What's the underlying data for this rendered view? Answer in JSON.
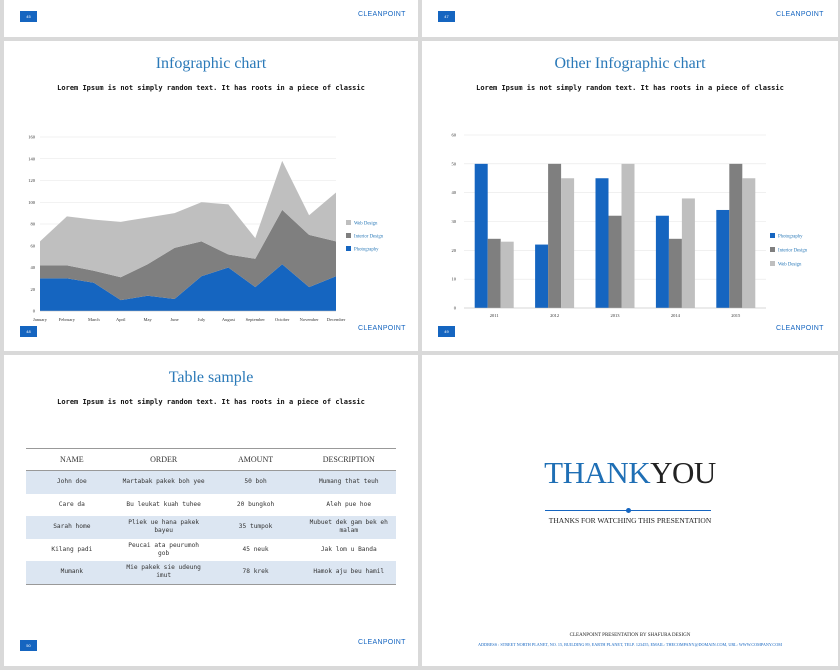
{
  "brand": "CLEANPOINT",
  "top_slides": {
    "left_page": "45",
    "right_page": "47"
  },
  "slide1": {
    "title": "Infographic chart",
    "subtitle": "Lorem Ipsum is not simply random text. It has roots in a piece of classic",
    "page": "48"
  },
  "slide2": {
    "title": "Other Infographic chart",
    "subtitle": "Lorem Ipsum is not simply random text. It has roots in a piece of classic",
    "page": "49"
  },
  "slide3": {
    "title": "Table sample",
    "subtitle": "Lorem Ipsum is not simply random text. It has roots in a piece of classic",
    "page": "50",
    "headers": [
      "NAME",
      "ORDER",
      "AMOUNT",
      "DESCRIPTION"
    ],
    "rows": [
      [
        "John doe",
        "Martabak pakek boh yee",
        "50 boh",
        "Mumang that teuh"
      ],
      [
        "Care da",
        "Bu leukat kuah tuhee",
        "20 bungkoh",
        "Aleh pue hoe"
      ],
      [
        "Sarah home",
        "Pliek ue hana pakek bayeu",
        "35 tumpok",
        "Mubuet dek gam bek eh malam"
      ],
      [
        "Kilang padi",
        "Peucai ata peurumoh gob",
        "45 neuk",
        "Jak lom u Banda"
      ],
      [
        "Mumank",
        "Mie pakek sie udeung imut",
        "78 krek",
        "Hamok aju beu hamil"
      ]
    ]
  },
  "slide4": {
    "thank": "THANK",
    "you": "YOU",
    "tagline": "THANKS FOR WATCHING THIS PRESENTATION",
    "footer1": "CLEANPOINT PRESENTATION BY SHAFURA DESIGN",
    "footer2": "ADDRESS : STREET NORTH PLANET, NO. 15, BUILDING 89, EARTH PLANET, TELP. 123455, EMAIL: THECOMPANY@DOMAIN.COM, URL: WWW.COMPANY.COM"
  },
  "chart_data": [
    {
      "type": "area",
      "title": "",
      "categories": [
        "January",
        "February",
        "March",
        "April",
        "May",
        "June",
        "July",
        "August",
        "September",
        "October",
        "November",
        "December"
      ],
      "ylim": [
        0,
        160
      ],
      "yticks": [
        0,
        20,
        40,
        60,
        80,
        100,
        120,
        140,
        160
      ],
      "series": [
        {
          "name": "Photography",
          "color": "#1565c0",
          "values": [
            30,
            30,
            26,
            10,
            14,
            11,
            32,
            40,
            22,
            43,
            22,
            32
          ]
        },
        {
          "name": "Interior Design",
          "color": "#7f7f7f",
          "values": [
            12,
            12,
            11,
            21,
            29,
            47,
            32,
            12,
            26,
            50,
            48,
            32
          ]
        },
        {
          "name": "Web Design",
          "color": "#bfbfbf",
          "values": [
            22,
            45,
            47,
            51,
            43,
            32,
            36,
            46,
            19,
            45,
            18,
            45
          ]
        }
      ]
    },
    {
      "type": "bar",
      "title": "",
      "categories": [
        "2011",
        "2012",
        "2013",
        "2014",
        "2015"
      ],
      "ylim": [
        0,
        60
      ],
      "yticks": [
        0,
        10,
        20,
        30,
        40,
        50,
        60
      ],
      "series": [
        {
          "name": "Photography",
          "color": "#1565c0",
          "values": [
            50,
            22,
            45,
            32,
            34
          ]
        },
        {
          "name": "Interior Design",
          "color": "#7f7f7f",
          "values": [
            24,
            50,
            32,
            24,
            50
          ]
        },
        {
          "name": "Web Design",
          "color": "#bfbfbf",
          "values": [
            23,
            45,
            50,
            38,
            45
          ]
        }
      ]
    }
  ]
}
